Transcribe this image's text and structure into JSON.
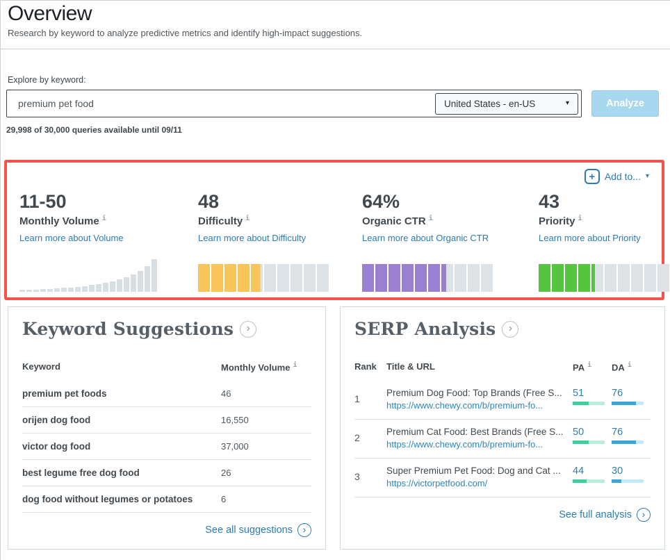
{
  "page": {
    "title": "Overview",
    "subtitle": "Research by keyword to analyze predictive metrics and identify high-impact suggestions."
  },
  "icons": {
    "info": "i",
    "caret_down": "▾",
    "plus": "+",
    "chevron_right": "›"
  },
  "search": {
    "label": "Explore by keyword:",
    "value": "premium pet food",
    "locale": "United States - en-US",
    "analyze_label": "Analyze",
    "quota": "29,998 of 30,000 queries available until 09/11"
  },
  "addto": {
    "label": "Add to..."
  },
  "colors": {
    "highlight_box": "#f4544b",
    "segment_track": "#dce2e5",
    "histogram_bar": "#d8dfe2",
    "link_blue": "#2b7cb5",
    "pa": {
      "fill": "#3ecfa0",
      "track": "#b9efda"
    },
    "da": {
      "fill": "#3ba5d8",
      "track": "#c4e9f8"
    }
  },
  "metrics": [
    {
      "value": "11-50",
      "label": "Monthly Volume",
      "link": "Learn more about Volume",
      "viz": "histogram",
      "bars": [
        3,
        3,
        3,
        4,
        4,
        5,
        6,
        6,
        7,
        8,
        10,
        11,
        13,
        15,
        18,
        21,
        25,
        30,
        37,
        47
      ]
    },
    {
      "value": "48",
      "label": "Difficulty",
      "link": "Learn more about Difficulty",
      "viz": "segments",
      "fill_segments": 4.8,
      "color": "#f9c45a"
    },
    {
      "value": "64%",
      "label": "Organic CTR",
      "link": "Learn more about Organic CTR",
      "viz": "segments",
      "fill_segments": 6.4,
      "color": "#9b80d2"
    },
    {
      "value": "43",
      "label": "Priority",
      "link": "Learn more about Priority",
      "viz": "segments",
      "fill_segments": 4.3,
      "color": "#55c43e"
    }
  ],
  "keyword_suggestions": {
    "title": "Keyword Suggestions",
    "col_keyword": "Keyword",
    "col_volume": "Monthly Volume",
    "rows": [
      {
        "keyword": "premium pet foods",
        "volume": "46"
      },
      {
        "keyword": "orijen dog food",
        "volume": "16,550"
      },
      {
        "keyword": "victor dog food",
        "volume": "37,000"
      },
      {
        "keyword": "best legume free dog food",
        "volume": "26"
      },
      {
        "keyword": "dog food without legumes or potatoes",
        "volume": "6"
      }
    ],
    "see_all": "See all suggestions"
  },
  "serp_analysis": {
    "title": "SERP Analysis",
    "col_rank": "Rank",
    "col_title_url": "Title & URL",
    "col_pa": "PA",
    "col_da": "DA",
    "rows": [
      {
        "rank": "1",
        "title": "Premium Dog Food: Top Brands (Free S...",
        "url": "https://www.chewy.com/b/premium-fo...",
        "pa": 51,
        "da": 76
      },
      {
        "rank": "2",
        "title": "Premium Cat Food: Best Brands (Free S...",
        "url": "https://www.chewy.com/b/premium-fo...",
        "pa": 50,
        "da": 76
      },
      {
        "rank": "3",
        "title": "Super Premium Pet Food: Dog and Cat ...",
        "url": "https://victorpetfood.com/",
        "pa": 44,
        "da": 30
      }
    ],
    "see_full": "See full analysis"
  }
}
